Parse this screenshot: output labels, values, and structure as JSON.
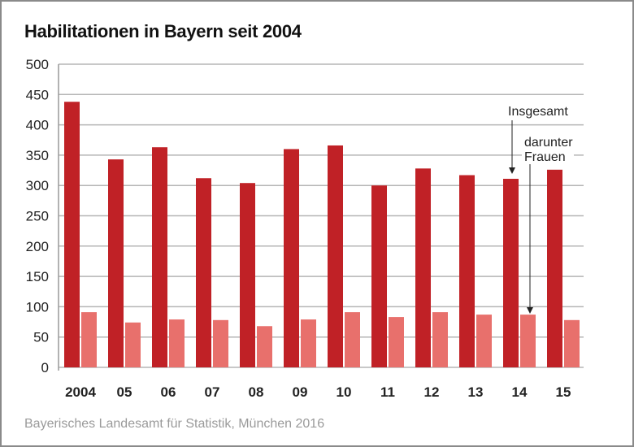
{
  "chart_data": {
    "type": "bar",
    "title": "Habilitationen in Bayern seit 2004",
    "source": "Bayerisches Landesamt für Statistik, München 2016",
    "categories": [
      "2004",
      "05",
      "06",
      "07",
      "08",
      "09",
      "10",
      "11",
      "12",
      "13",
      "14",
      "15"
    ],
    "series": [
      {
        "name": "Insgesamt",
        "color": "#c02126",
        "values": [
          438,
          343,
          363,
          312,
          304,
          360,
          366,
          300,
          328,
          317,
          311,
          326
        ]
      },
      {
        "name": "darunter Frauen",
        "color": "#e8706c",
        "values": [
          91,
          74,
          79,
          78,
          68,
          79,
          91,
          83,
          91,
          87,
          87,
          78
        ]
      }
    ],
    "yticks": [
      0,
      50,
      100,
      150,
      200,
      250,
      300,
      350,
      400,
      450,
      500
    ],
    "ylim": [
      0,
      500
    ],
    "grid": true,
    "annotations": [
      "Insgesamt",
      "darunter",
      "Frauen"
    ]
  }
}
